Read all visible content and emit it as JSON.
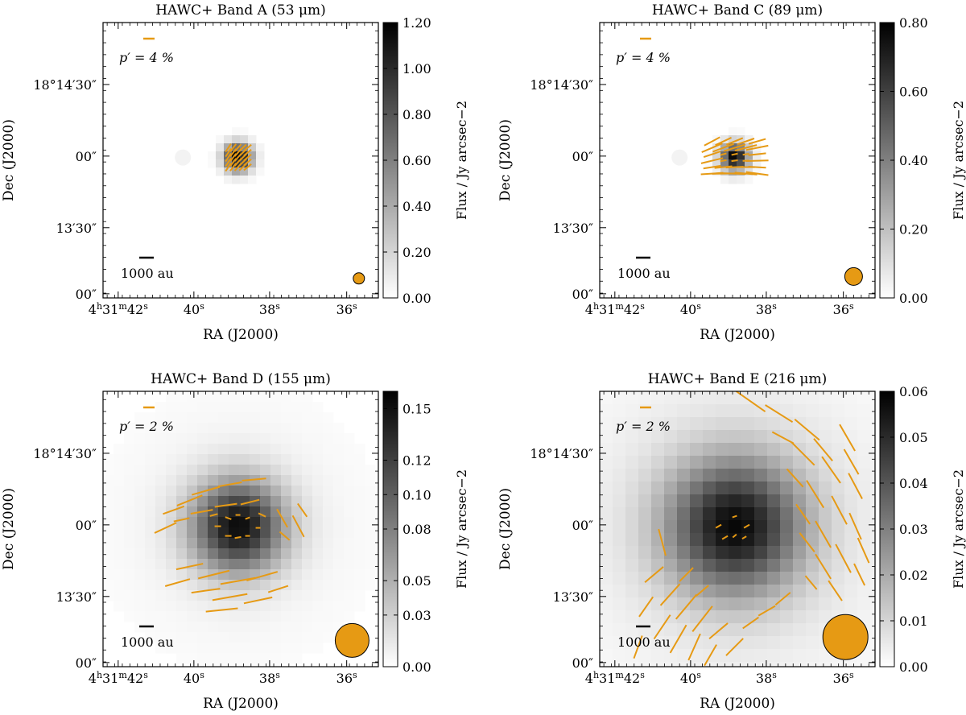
{
  "figure": {
    "panel_count": 4,
    "accent_color": "#e69a14",
    "colormap": "greys"
  },
  "chart_data": [
    {
      "type": "heatmap",
      "title": "HAWC+ Band A (53 μm)",
      "xlabel": "RA (J2000)",
      "ylabel": "Dec (J2000)",
      "x_ticks": [
        "4h31m42s",
        "40s",
        "38s",
        "36s"
      ],
      "y_ticks": [
        "18°14′30″",
        "00″",
        "13′30″",
        "00″"
      ],
      "colorbar": {
        "label": "Flux / Jy arcsec−2",
        "range": [
          0.0,
          1.2
        ],
        "ticks": [
          "0.00",
          "0.20",
          "0.40",
          "0.60",
          "0.80",
          "1.00",
          "1.20"
        ]
      },
      "pol_scale_label": "p′ = 4 %",
      "distance_scale_label": "1000 au",
      "beam": "small",
      "source_extent": "compact",
      "vector_pattern": "core"
    },
    {
      "type": "heatmap",
      "title": "HAWC+ Band C (89 μm)",
      "xlabel": "RA (J2000)",
      "ylabel": "Dec (J2000)",
      "x_ticks": [
        "4h31m42s",
        "40s",
        "38s",
        "36s"
      ],
      "y_ticks": [
        "18°14′30″",
        "00″",
        "13′30″",
        "00″"
      ],
      "colorbar": {
        "label": "Flux / Jy arcsec−2",
        "range": [
          0.0,
          0.8
        ],
        "ticks": [
          "0.00",
          "0.20",
          "0.40",
          "0.60",
          "0.80"
        ]
      },
      "pol_scale_label": "p′ = 4 %",
      "distance_scale_label": "1000 au",
      "beam": "medium",
      "source_extent": "compact",
      "vector_pattern": "horizontal"
    },
    {
      "type": "heatmap",
      "title": "HAWC+ Band D (155 μm)",
      "xlabel": "RA (J2000)",
      "ylabel": "Dec (J2000)",
      "x_ticks": [
        "4h31m42s",
        "40s",
        "38s",
        "36s"
      ],
      "y_ticks": [
        "18°14′30″",
        "00″",
        "13′30″",
        "00″"
      ],
      "colorbar": {
        "label": "Flux / Jy arcsec−2",
        "range": [
          0.0,
          0.16
        ],
        "ticks": [
          "0.00",
          "0.03",
          "0.05",
          "0.08",
          "0.10",
          "0.12",
          "0.15"
        ]
      },
      "pol_scale_label": "p′ = 2 %",
      "distance_scale_label": "1000 au",
      "beam": "large",
      "source_extent": "extended",
      "vector_pattern": "hourglass"
    },
    {
      "type": "heatmap",
      "title": "HAWC+ Band E (216 μm)",
      "xlabel": "RA (J2000)",
      "ylabel": "Dec (J2000)",
      "x_ticks": [
        "4h31m42s",
        "40s",
        "38s",
        "36s"
      ],
      "y_ticks": [
        "18°14′30″",
        "00″",
        "13′30″",
        "00″"
      ],
      "colorbar": {
        "label": "Flux / Jy arcsec−2",
        "range": [
          0.0,
          0.06
        ],
        "ticks": [
          "0.00",
          "0.01",
          "0.02",
          "0.03",
          "0.04",
          "0.05",
          "0.06"
        ]
      },
      "pol_scale_label": "p′ = 2 %",
      "distance_scale_label": "1000 au",
      "beam": "xlarge",
      "source_extent": "very-extended",
      "vector_pattern": "arc"
    }
  ]
}
